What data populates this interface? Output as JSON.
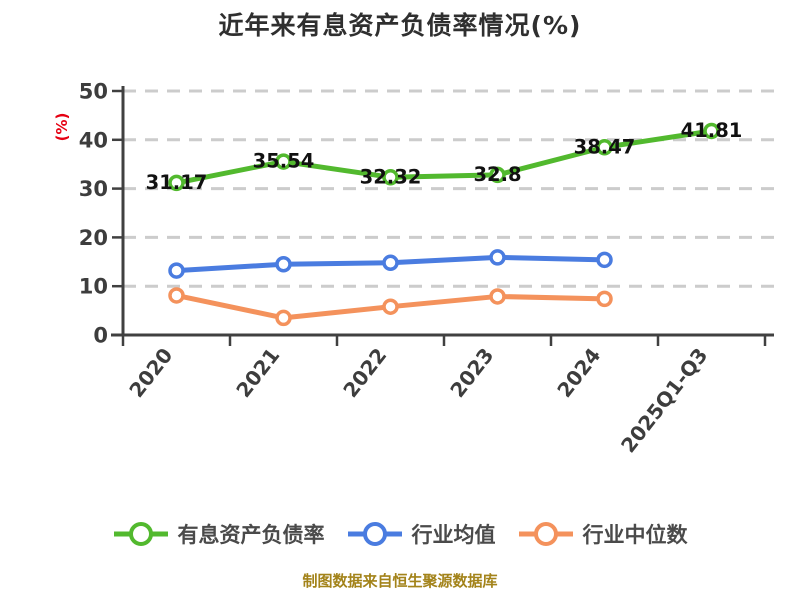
{
  "header": {
    "title": "近年来有息资产负债率情况(%)"
  },
  "chart_data": {
    "type": "line",
    "title": "近年来有息资产负债率情况(%)",
    "xlabel": "",
    "ylabel": "(%)",
    "categories": [
      "2020",
      "2021",
      "2022",
      "2023",
      "2024",
      "2025Q1-Q3"
    ],
    "series": [
      {
        "key": "interest-bearing-debt-ratio",
        "name": "有息资产负债率",
        "color": "#52b92e",
        "show_point_labels": true,
        "values": [
          31.17,
          35.54,
          32.32,
          32.8,
          38.47,
          41.81
        ],
        "point_labels": [
          "31.17",
          "35.54",
          "32.32",
          "32.8",
          "38.47",
          "41.81"
        ]
      },
      {
        "key": "industry-average",
        "name": "行业均值",
        "color": "#4a7ce0",
        "show_point_labels": false,
        "values": [
          13.2,
          14.5,
          14.8,
          15.9,
          15.4,
          null
        ],
        "point_labels": []
      },
      {
        "key": "industry-median",
        "name": "行业中位数",
        "color": "#f4925c",
        "show_point_labels": false,
        "values": [
          8.1,
          3.5,
          5.8,
          7.9,
          7.4,
          null
        ],
        "point_labels": []
      }
    ],
    "ylim": [
      0,
      50
    ],
    "yticks": [
      0,
      10,
      20,
      30,
      40,
      50
    ],
    "grid": "horizontal-dashed",
    "legend_position": "bottom",
    "x_label_rotation_deg": -52
  },
  "footer": {
    "source_note": "制图数据来自恒生聚源数据库"
  },
  "colors": {
    "background": "#ffffff",
    "axis": "#404040",
    "gridline": "#cccccc",
    "tick_label": "#3d3d3d",
    "value_label": "#111111",
    "title": "#2f2f2f",
    "unit_label_red": "#e60012",
    "legend_text": "#4a4a4a",
    "footer_gold": "#a3831a",
    "series_green": "#52b92e",
    "series_blue": "#4a7ce0",
    "series_orange": "#f4925c"
  }
}
